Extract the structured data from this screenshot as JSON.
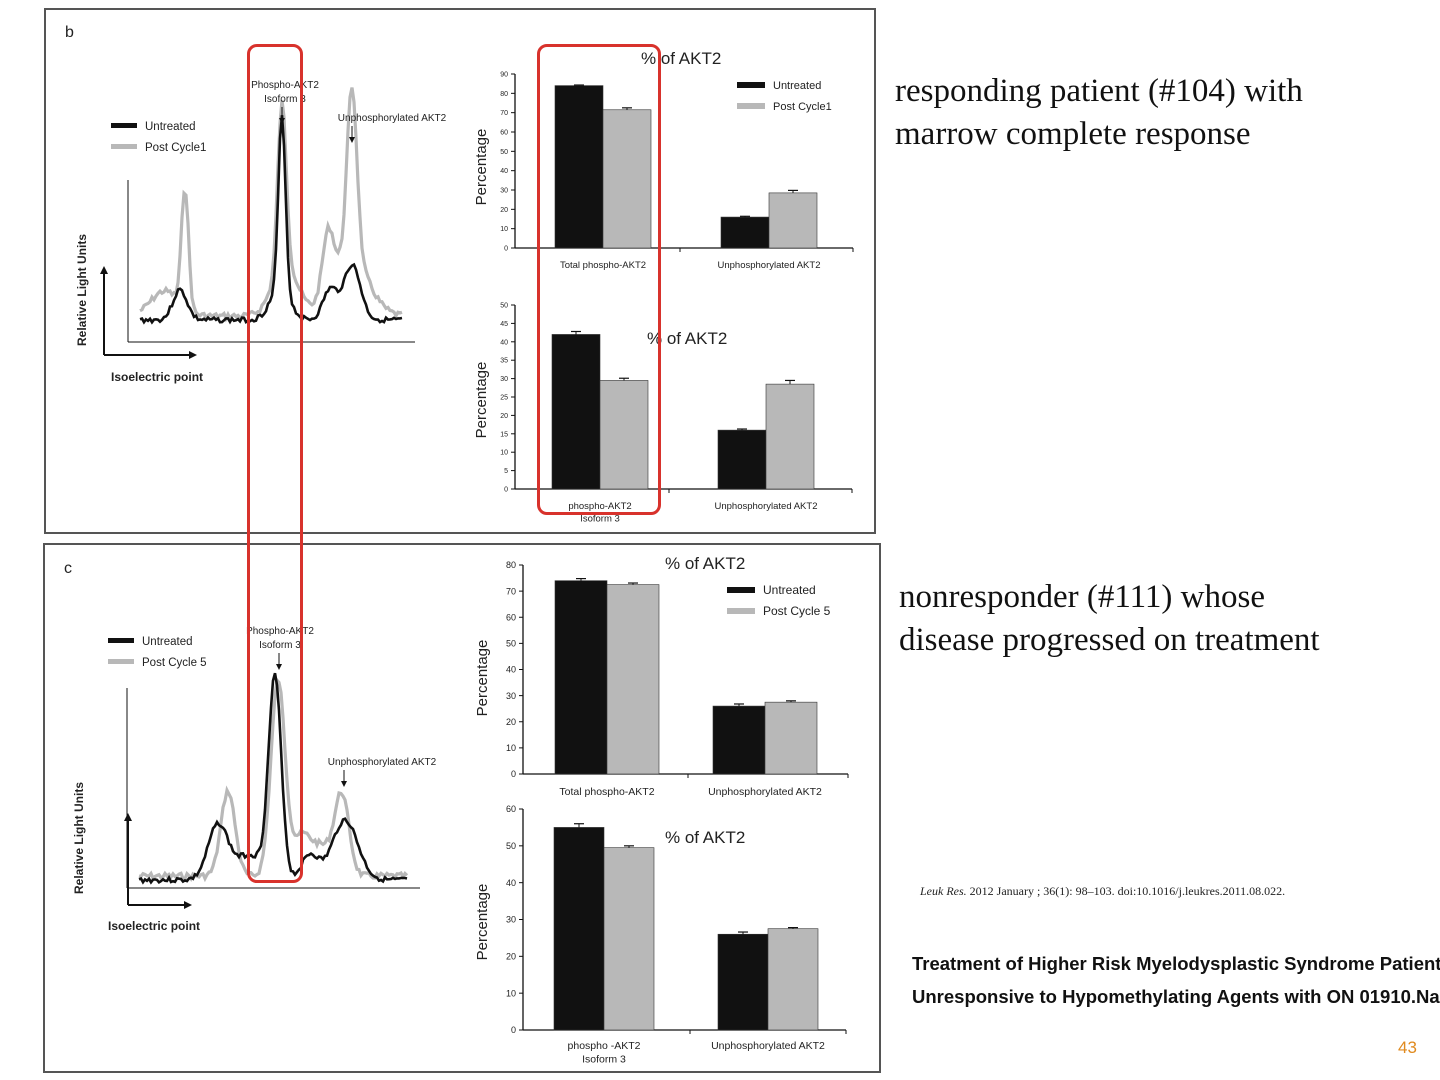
{
  "colors": {
    "untreated": "#111111",
    "post": "#b8b8b8",
    "highlight": "#d8322c",
    "page_number": "#e08a1e"
  },
  "panel_b": {
    "letter": "b"
  },
  "panel_c": {
    "letter": "c"
  },
  "captions": {
    "responder_line1": "responding patient (#104) with",
    "responder_line2": "marrow complete response",
    "nonresponder_line1": "nonresponder (#111) whose",
    "nonresponder_line2": "disease progressed on treatment"
  },
  "citation": {
    "journal": "Leuk Res.",
    "rest": " 2012 January ; 36(1): 98–103. doi:10.1016/j.leukres.2011.08.022."
  },
  "paper_title": {
    "line1": "Treatment of Higher Risk Myelodysplastic Syndrome Patients",
    "line2": "Unresponsive to Hypomethylating Agents with ON 01910.Na"
  },
  "page_number": "43",
  "chart_data": [
    {
      "id": "b_profile",
      "type": "line",
      "xlabel": "Isoelectric point",
      "ylabel": "Relative Light Units",
      "legend": [
        "Untreated",
        "Post Cycle1"
      ],
      "annotations": [
        "Phospho-AKT2",
        "Isoform 3",
        "Unphosphorylated AKT2"
      ]
    },
    {
      "id": "b_total",
      "type": "bar",
      "title": "% of AKT2",
      "ylabel": "Percentage",
      "ylim": [
        0,
        90
      ],
      "yticks": [
        0,
        10,
        20,
        30,
        40,
        50,
        60,
        70,
        80,
        90
      ],
      "categories": [
        "Total phospho-AKT2",
        "Unphosphorylated AKT2"
      ],
      "series": [
        {
          "name": "Untreated",
          "values": [
            84,
            16
          ],
          "errors": [
            0.3,
            0.4
          ]
        },
        {
          "name": "Post Cycle1",
          "values": [
            71.5,
            28.5
          ],
          "errors": [
            1,
            1.3
          ]
        }
      ]
    },
    {
      "id": "b_iso",
      "type": "bar",
      "title": "% of AKT2",
      "ylabel": "Percentage",
      "ylim": [
        0,
        50
      ],
      "yticks": [
        0,
        5,
        10,
        15,
        20,
        25,
        30,
        35,
        40,
        45,
        50
      ],
      "categories": [
        "phospho-AKT2",
        "Unphosphorylated AKT2"
      ],
      "category_sublabels": [
        "Isoform 3",
        ""
      ],
      "series": [
        {
          "name": "Untreated",
          "values": [
            42,
            16
          ],
          "errors": [
            0.8,
            0.3
          ]
        },
        {
          "name": "Post Cycle1",
          "values": [
            29.5,
            28.5
          ],
          "errors": [
            0.6,
            1
          ]
        }
      ]
    },
    {
      "id": "c_profile",
      "type": "line",
      "xlabel": "Isoelectric point",
      "ylabel": "Relative Light Units",
      "legend": [
        "Untreated",
        "Post Cycle 5"
      ],
      "annotations": [
        "Phospho-AKT2",
        "Isoform 3",
        "Unphosphorylated AKT2"
      ]
    },
    {
      "id": "c_total",
      "type": "bar",
      "title": "% of AKT2",
      "ylabel": "Percentage",
      "ylim": [
        0,
        80
      ],
      "yticks": [
        0,
        10,
        20,
        30,
        40,
        50,
        60,
        70,
        80
      ],
      "categories": [
        "Total phospho-AKT2",
        "Unphosphorylated AKT2"
      ],
      "series": [
        {
          "name": "Untreated",
          "values": [
            74,
            26
          ],
          "errors": [
            0.8,
            0.8
          ]
        },
        {
          "name": "Post Cycle 5",
          "values": [
            72.5,
            27.5
          ],
          "errors": [
            0.6,
            0.5
          ]
        }
      ]
    },
    {
      "id": "c_iso",
      "type": "bar",
      "title": "% of AKT2",
      "ylabel": "Percentage",
      "ylim": [
        0,
        60
      ],
      "yticks": [
        0,
        10,
        20,
        30,
        40,
        50,
        60
      ],
      "categories": [
        "phospho -AKT2",
        "Unphosphorylated AKT2"
      ],
      "category_sublabels": [
        "Isoform 3",
        ""
      ],
      "series": [
        {
          "name": "Untreated",
          "values": [
            55,
            26
          ],
          "errors": [
            1,
            0.6
          ]
        },
        {
          "name": "Post Cycle 5",
          "values": [
            49.5,
            27.5
          ],
          "errors": [
            0.5,
            0.3
          ]
        }
      ]
    }
  ]
}
